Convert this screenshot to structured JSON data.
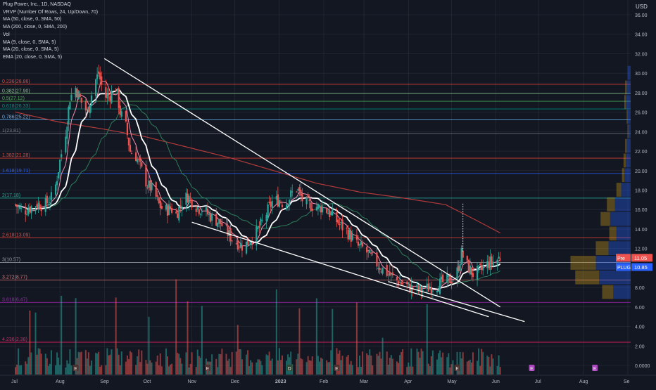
{
  "legend": {
    "title": "Plug Power, Inc., 1D, NASDAQ",
    "indicators": [
      "VRVP (Number Of Rows, 24, Up/Down, 70)",
      "MA (50, close, 0, SMA, 50)",
      "MA (200, close, 0, SMA, 200)",
      "Vol",
      "MA (9, close, 0, SMA, 5)",
      "MA (20, close, 0, SMA, 5)",
      "EMA (20, close, 0, SMA, 5)"
    ]
  },
  "colors": {
    "background": "#131722",
    "grid": "#2a2e39",
    "up": "#26a69a",
    "down": "#ef5350",
    "ma50": "#2e7d5b",
    "ma200": "#b33b3b",
    "ma9": "#f48fb1",
    "ma20": "#ffffff",
    "ema20": "#80cbc4",
    "trendline": "#ffffff"
  },
  "chart_data": {
    "type": "candlestick",
    "symbol": "PLUG",
    "exchange": "NASDAQ",
    "interval": "1D",
    "currency": "USD",
    "ylim": [
      0,
      37.5
    ],
    "y_ticks": [
      "36.00",
      "34.00",
      "32.00",
      "30.00",
      "28.00",
      "26.00",
      "24.00",
      "22.00",
      "20.00",
      "18.00",
      "16.00",
      "14.00",
      "12.00",
      "10.00",
      "8.00",
      "6.00",
      "4.00",
      "2.00",
      "0.0000"
    ],
    "y_tick_values": [
      36,
      34,
      32,
      30,
      28,
      26,
      24,
      22,
      20,
      18,
      16,
      14,
      12,
      10,
      8,
      6,
      4,
      2,
      0
    ],
    "x_ticks": [
      {
        "label": "Jul",
        "day": 0
      },
      {
        "label": "Aug",
        "day": 31
      },
      {
        "label": "Sep",
        "day": 62
      },
      {
        "label": "Oct",
        "day": 92
      },
      {
        "label": "Nov",
        "day": 123
      },
      {
        "label": "Dec",
        "day": 153
      },
      {
        "label": "2023",
        "day": 184
      },
      {
        "label": "Feb",
        "day": 215
      },
      {
        "label": "Mar",
        "day": 243
      },
      {
        "label": "Apr",
        "day": 274
      },
      {
        "label": "May",
        "day": 304
      },
      {
        "label": "Jun",
        "day": 335
      },
      {
        "label": "Jul",
        "day": 365
      },
      {
        "label": "Aug",
        "day": 396
      },
      {
        "label": "Se",
        "day": 427
      }
    ],
    "close_path": [
      [
        0,
        16.5
      ],
      [
        5,
        15.8
      ],
      [
        10,
        16.2
      ],
      [
        15,
        16.6
      ],
      [
        20,
        16.4
      ],
      [
        25,
        17.2
      ],
      [
        28,
        18.5
      ],
      [
        31,
        21.0
      ],
      [
        35,
        24.0
      ],
      [
        38,
        27.5
      ],
      [
        42,
        28.5
      ],
      [
        46,
        27.0
      ],
      [
        50,
        26.0
      ],
      [
        55,
        29.0
      ],
      [
        58,
        30.0
      ],
      [
        62,
        27.5
      ],
      [
        66,
        27.8
      ],
      [
        70,
        28.6
      ],
      [
        73,
        26.0
      ],
      [
        77,
        24.5
      ],
      [
        80,
        22.0
      ],
      [
        84,
        21.5
      ],
      [
        88,
        20.0
      ],
      [
        92,
        18.5
      ],
      [
        96,
        18.0
      ],
      [
        100,
        16.5
      ],
      [
        104,
        15.8
      ],
      [
        108,
        16.2
      ],
      [
        112,
        15.5
      ],
      [
        116,
        16.8
      ],
      [
        120,
        17.4
      ],
      [
        123,
        16.9
      ],
      [
        127,
        16.2
      ],
      [
        131,
        16.0
      ],
      [
        135,
        15.4
      ],
      [
        139,
        15.0
      ],
      [
        143,
        14.6
      ],
      [
        147,
        13.8
      ],
      [
        151,
        13.0
      ],
      [
        155,
        12.6
      ],
      [
        159,
        12.2
      ],
      [
        163,
        12.8
      ],
      [
        167,
        13.4
      ],
      [
        171,
        14.4
      ],
      [
        175,
        15.6
      ],
      [
        179,
        16.8
      ],
      [
        184,
        17.0
      ],
      [
        188,
        16.5
      ],
      [
        192,
        17.5
      ],
      [
        196,
        18.2
      ],
      [
        200,
        17.0
      ],
      [
        204,
        16.5
      ],
      [
        208,
        16.4
      ],
      [
        212,
        16.2
      ],
      [
        215,
        16.3
      ],
      [
        219,
        15.6
      ],
      [
        223,
        15.0
      ],
      [
        227,
        14.3
      ],
      [
        231,
        13.8
      ],
      [
        235,
        13.0
      ],
      [
        239,
        12.2
      ],
      [
        243,
        12.0
      ],
      [
        247,
        11.2
      ],
      [
        251,
        10.6
      ],
      [
        255,
        10.0
      ],
      [
        259,
        9.5
      ],
      [
        263,
        9.0
      ],
      [
        267,
        8.6
      ],
      [
        271,
        8.3
      ],
      [
        275,
        8.0
      ],
      [
        279,
        7.8
      ],
      [
        283,
        7.7
      ],
      [
        287,
        7.9
      ],
      [
        291,
        8.1
      ],
      [
        295,
        8.3
      ],
      [
        299,
        8.6
      ],
      [
        303,
        8.8
      ],
      [
        307,
        9.0
      ],
      [
        311,
        11.5
      ],
      [
        315,
        10.2
      ],
      [
        319,
        9.4
      ],
      [
        323,
        9.6
      ],
      [
        327,
        10.2
      ],
      [
        331,
        10.6
      ],
      [
        335,
        10.7
      ],
      [
        338,
        11.2
      ]
    ],
    "vol_seed": 7,
    "ma200_path": [
      [
        0,
        26.0
      ],
      [
        30,
        25.0
      ],
      [
        60,
        24.3
      ],
      [
        90,
        23.5
      ],
      [
        120,
        22.4
      ],
      [
        150,
        21.3
      ],
      [
        180,
        20.0
      ],
      [
        210,
        18.7
      ],
      [
        240,
        17.8
      ],
      [
        270,
        17.2
      ],
      [
        300,
        16.5
      ],
      [
        320,
        15.0
      ],
      [
        338,
        13.6
      ]
    ],
    "trendline_upper": [
      [
        62,
        31.5
      ],
      [
        338,
        6.0
      ]
    ],
    "trendline_lower_1": [
      [
        123,
        14.7
      ],
      [
        330,
        5.0
      ]
    ],
    "trendline_lower_2": [
      [
        260,
        8.6
      ],
      [
        355,
        4.5
      ]
    ],
    "projection": {
      "day": 312,
      "from": 11.7,
      "to": 16.6
    },
    "fib_levels": [
      {
        "label": "0.236(28.86)",
        "value": 28.86,
        "color": "#f44336"
      },
      {
        "label": "0.382(27.90)",
        "value": 27.9,
        "color": "#81c784"
      },
      {
        "label": "0.5(27.12)",
        "value": 27.12,
        "color": "#4caf50"
      },
      {
        "label": "0.618(26.33)",
        "value": 26.33,
        "color": "#009688"
      },
      {
        "label": "0.786(25.22)",
        "value": 25.22,
        "color": "#64b5f6"
      },
      {
        "label": "1(23.81)",
        "value": 23.81,
        "color": "#787b86"
      },
      {
        "label": "1.382(21.28)",
        "value": 21.28,
        "color": "#f44336"
      },
      {
        "label": "1.618(19.71)",
        "value": 19.71,
        "color": "#2962ff"
      },
      {
        "label": "2(17.18)",
        "value": 17.18,
        "color": "#26a69a"
      },
      {
        "label": "2.618(13.09)",
        "value": 13.09,
        "color": "#f44336"
      },
      {
        "label": "3(10.57)",
        "value": 10.57,
        "color": "#9598a1"
      },
      {
        "label": "3.272(8.77)",
        "value": 8.77,
        "color": "#e57373"
      },
      {
        "label": "3.618(6.47)",
        "value": 6.47,
        "color": "#9c27b0"
      },
      {
        "label": "4.236(2.38)",
        "value": 2.38,
        "color": "#e91e63"
      }
    ],
    "vrvp": [
      {
        "price": 30.0,
        "up": 0,
        "down": 4
      },
      {
        "price": 28.5,
        "up": 2,
        "down": 5
      },
      {
        "price": 27.0,
        "up": 2,
        "down": 6
      },
      {
        "price": 25.5,
        "up": 1,
        "down": 4
      },
      {
        "price": 24.0,
        "up": 1,
        "down": 3
      },
      {
        "price": 22.5,
        "up": 2,
        "down": 5
      },
      {
        "price": 21.0,
        "up": 3,
        "down": 6
      },
      {
        "price": 19.5,
        "up": 3,
        "down": 8
      },
      {
        "price": 18.0,
        "up": 6,
        "down": 12
      },
      {
        "price": 16.5,
        "up": 10,
        "down": 20
      },
      {
        "price": 15.0,
        "up": 12,
        "down": 26
      },
      {
        "price": 13.5,
        "up": 9,
        "down": 18
      },
      {
        "price": 12.0,
        "up": 16,
        "down": 28
      },
      {
        "price": 10.5,
        "up": 32,
        "down": 44
      },
      {
        "price": 9.0,
        "up": 30,
        "down": 40
      },
      {
        "price": 7.5,
        "up": 14,
        "down": 22
      }
    ],
    "price_tags": [
      {
        "label": "Pre",
        "value": "11.05",
        "price": 11.05,
        "color": "#ef5350"
      },
      {
        "label": "PLUG",
        "value": "10.85",
        "price": 10.1,
        "color": "#2962ff"
      }
    ],
    "earnings_markers": [
      {
        "day": 42,
        "label": "E"
      },
      {
        "day": 134,
        "label": "E"
      },
      {
        "day": 224,
        "label": "E"
      },
      {
        "day": 308,
        "label": "E"
      }
    ],
    "dividend_markers": [
      {
        "day": 191,
        "label": "D"
      }
    ],
    "event_markers": [
      {
        "day": 360,
        "label": "E",
        "color": "#ab47bc"
      }
    ],
    "future_markers": [
      {
        "day": 404,
        "label": "E",
        "color": "#ab47bc"
      }
    ]
  }
}
